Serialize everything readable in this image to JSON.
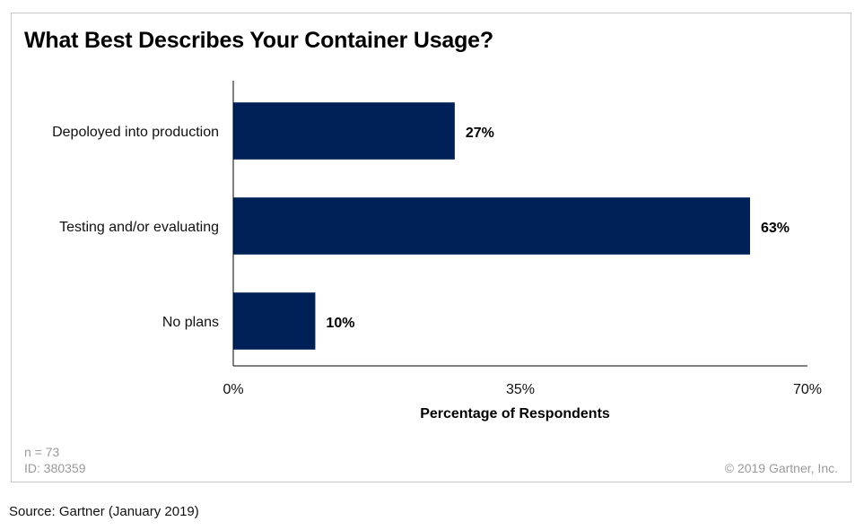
{
  "chart_data": {
    "type": "bar",
    "orientation": "horizontal",
    "title": "What Best Describes Your Container Usage?",
    "categories": [
      "Depoloyed into production",
      "Testing and/or evaluating",
      "No plans"
    ],
    "values": [
      27,
      63,
      10
    ],
    "data_labels": [
      "27%",
      "63%",
      "10%"
    ],
    "xlabel": "Percentage of Respondents",
    "ylabel": "",
    "xlim": [
      0,
      70
    ],
    "xticks": [
      0,
      35,
      70
    ],
    "xtick_labels": [
      "0%",
      "35%",
      "70%"
    ],
    "grid": false,
    "legend": "none",
    "bar_color": "#002157"
  },
  "footer": {
    "sample_size": "n = 73",
    "id": "ID: 380359",
    "copyright": "© 2019 Gartner, Inc."
  },
  "source": "Source: Gartner (January 2019)"
}
